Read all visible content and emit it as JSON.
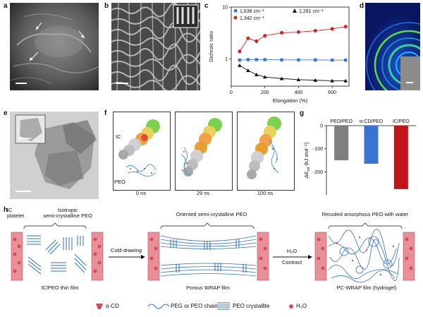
{
  "panels": {
    "a": "a",
    "b": "b",
    "c": "c",
    "d": "d",
    "e": "e",
    "f": "f",
    "g": "g",
    "h": "h"
  },
  "chart_c": {
    "type": "scatter",
    "xlabel": "Elongation (%)",
    "ylabel": "Dichroic ratio",
    "xlim": [
      0,
      700
    ],
    "ylog": true,
    "ylim": [
      0.3,
      10
    ],
    "xticks": [
      "0",
      "200",
      "400",
      "600"
    ],
    "yticks": [
      "1",
      "10"
    ],
    "series": [
      {
        "name": "1,638 cm⁻¹",
        "color": "#3b73d1",
        "marker": "square",
        "x": [
          50,
          100,
          150,
          200,
          300,
          400,
          500,
          600,
          680
        ],
        "y": [
          0.95,
          0.97,
          0.97,
          0.97,
          0.96,
          0.96,
          0.96,
          0.95,
          0.95
        ]
      },
      {
        "name": "1,342 cm⁻¹",
        "color": "#d42020",
        "marker": "circle",
        "x": [
          50,
          100,
          150,
          200,
          300,
          400,
          500,
          600,
          680
        ],
        "y": [
          1.4,
          2.5,
          2.2,
          2.8,
          3.2,
          3.3,
          3.5,
          3.8,
          4.2
        ]
      },
      {
        "name": "1,281 cm⁻¹",
        "color": "#111111",
        "marker": "triangle",
        "x": [
          50,
          100,
          150,
          200,
          300,
          400,
          500,
          600,
          680
        ],
        "y": [
          0.75,
          0.6,
          0.5,
          0.45,
          0.42,
          0.4,
          0.39,
          0.38,
          0.38
        ]
      }
    ]
  },
  "chart_g": {
    "type": "bar",
    "categories": [
      "PEO/PEO",
      "α-CD/PEO",
      "IC/PEO"
    ],
    "values": [
      -150,
      -165,
      -275
    ],
    "colors": [
      "#7f7f7f",
      "#3b73d1",
      "#c0141a"
    ],
    "ylabel": "ΔE",
    "ylabel_sub": "int",
    "ylabel_unit": "(kJ mol⁻¹)",
    "ylim": [
      -300,
      0
    ],
    "yticks": [
      "0",
      "-100",
      "-200"
    ]
  },
  "panel_f": {
    "ic_label": "IC",
    "peo_label": "PEO",
    "times": [
      "0 ns",
      "29 ns",
      "100 ns"
    ]
  },
  "panel_h": {
    "ic_platelet": "IC\nplatelet",
    "isotropic": "Isotropic\nsemi-crystalline PEO",
    "oriented": "Oriented semi-crystalline PEO",
    "recoiled": "Recoiled amorphous PEO with water",
    "cold_drawing": "Cold-drawing",
    "h2o": "H₂O",
    "contract": "Contract",
    "film1": "IC/PEO thin film",
    "film2": "Porous WRAP film",
    "film3": "PC-WRAP film (hydrogel)",
    "legend": [
      "α-CD",
      "PEG or PEO chain",
      "PEO crystallite",
      "H₂O"
    ]
  }
}
